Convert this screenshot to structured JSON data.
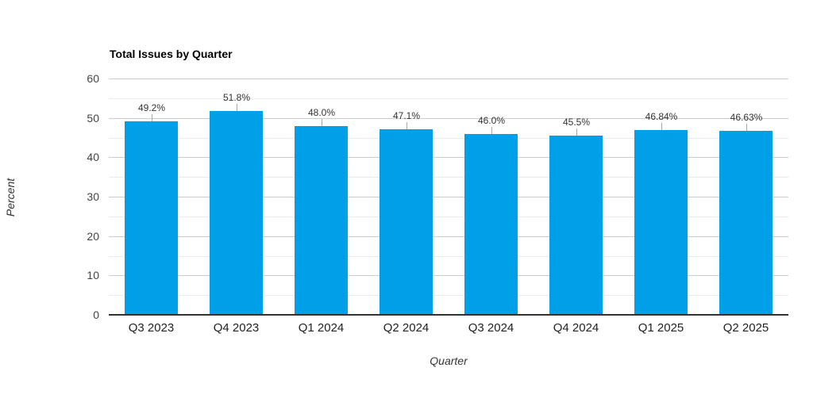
{
  "chart_data": {
    "type": "bar",
    "title": "Total Issues by Quarter",
    "xlabel": "Quarter",
    "ylabel": "Percent",
    "categories": [
      "Q3 2023",
      "Q4 2023",
      "Q1 2024",
      "Q2 2024",
      "Q3 2024",
      "Q4 2024",
      "Q1 2025",
      "Q2 2025"
    ],
    "values": [
      49.2,
      51.8,
      48.0,
      47.1,
      46.0,
      45.5,
      46.84,
      46.63
    ],
    "value_labels": [
      "49.2%",
      "51.8%",
      "48.0%",
      "47.1%",
      "46.0%",
      "45.5%",
      "46.84%",
      "46.63%"
    ],
    "ylim": [
      0,
      60
    ],
    "yticks": [
      0,
      10,
      20,
      30,
      40,
      50,
      60
    ],
    "minor_tick_step": 5,
    "grid": "on",
    "legend": "none",
    "colors": {
      "bar": "#00A0E9",
      "major_grid": "#cccccc",
      "minor_grid": "#eaeaea",
      "baseline": "#333333",
      "annotation_text": "#333333",
      "annotation_stem": "#aaaaaa",
      "tick_text": "#444444",
      "category_text": "#222222",
      "title_text": "#000000"
    }
  }
}
